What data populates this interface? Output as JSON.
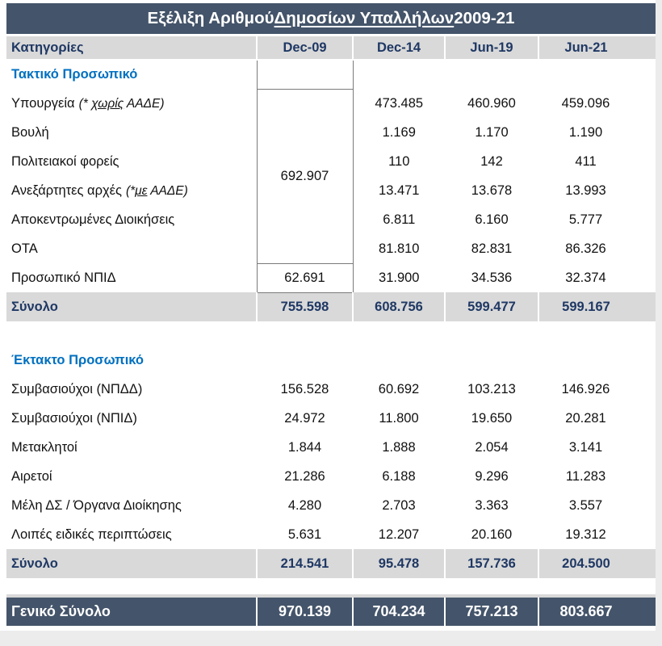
{
  "title": {
    "prefix": "Εξέλιξη Αριθμού ",
    "underlined": "Δημοσίων Υπαλλήλων",
    "suffix": " 2009-21"
  },
  "header": {
    "columns": [
      "Κατηγορίες",
      "Dec-09",
      "Dec-14",
      "Jun-19",
      "Jun-21"
    ]
  },
  "colors": {
    "title_bg": "#44546A",
    "title_text": "#FFFFFF",
    "header_bg": "#D9D9D9",
    "header_text": "#1F3864",
    "section_text": "#0070C0",
    "subtotal_bg": "#D9D9D9",
    "subtotal_text": "#1F3864",
    "grand_bg": "#44546A",
    "grand_text": "#FFFFFF",
    "box_border": "#7A7A7A"
  },
  "table": {
    "merge": {
      "value": "692.907",
      "span": 6,
      "column": "Dec-09"
    },
    "rows": [
      {
        "type": "section",
        "label": "Τακτικό Προσωπικό",
        "box_empty": true
      },
      {
        "type": "data",
        "label": "Υπουργεία",
        "note": {
          "pre": "(* ",
          "u": "χωρίς",
          "post": " ΑΑΔΕ)"
        },
        "merge_start": true,
        "values": [
          null,
          "473.485",
          "460.960",
          "459.096"
        ]
      },
      {
        "type": "data",
        "label": "Βουλή",
        "in_merge": true,
        "values": [
          null,
          "1.169",
          "1.170",
          "1.190"
        ]
      },
      {
        "type": "data",
        "label": "Πολιτειακοί φορείς",
        "in_merge": true,
        "values": [
          null,
          "110",
          "142",
          "411"
        ]
      },
      {
        "type": "data",
        "label": "Ανεξάρτητες αρχές",
        "note": {
          "pre": "(*",
          "u": "με",
          "post": " ΑΑΔΕ)"
        },
        "in_merge": true,
        "values": [
          null,
          "13.471",
          "13.678",
          "13.993"
        ]
      },
      {
        "type": "data",
        "label": "Αποκεντρωμένες Διοικήσεις",
        "in_merge": true,
        "values": [
          null,
          "6.811",
          "6.160",
          "5.777"
        ]
      },
      {
        "type": "data",
        "label": "ΟΤΑ",
        "in_merge": true,
        "values": [
          null,
          "81.810",
          "82.831",
          "86.326"
        ]
      },
      {
        "type": "data",
        "label": "Προσωπικό ΝΠΙΔ",
        "dec09_box": true,
        "values": [
          "62.691",
          "31.900",
          "34.536",
          "32.374"
        ]
      },
      {
        "type": "subtotal",
        "label": "Σύνολο",
        "values": [
          "755.598",
          "608.756",
          "599.477",
          "599.167"
        ]
      },
      {
        "type": "spacer",
        "height": 30
      },
      {
        "type": "section",
        "label": "Έκτακτο Προσωπικό"
      },
      {
        "type": "data",
        "label": "Συμβασιούχοι (ΝΠΔΔ)",
        "values": [
          "156.528",
          "60.692",
          "103.213",
          "146.926"
        ]
      },
      {
        "type": "data",
        "label": "Συμβασιούχοι (ΝΠΙΔ)",
        "values": [
          "24.972",
          "11.800",
          "19.650",
          "20.281"
        ]
      },
      {
        "type": "data",
        "label": "Μετακλητοί",
        "values": [
          "1.844",
          "1.888",
          "2.054",
          "3.141"
        ]
      },
      {
        "type": "data",
        "label": "Αιρετοί",
        "values": [
          "21.286",
          "6.188",
          "9.296",
          "11.283"
        ]
      },
      {
        "type": "data",
        "label": "Μέλη ΔΣ / Όργανα Διοίκησης",
        "values": [
          "4.280",
          "2.703",
          "3.363",
          "3.557"
        ]
      },
      {
        "type": "data",
        "label": "Λοιπές ειδικές περιπτώσεις",
        "values": [
          "5.631",
          "12.207",
          "20.160",
          "19.312"
        ]
      },
      {
        "type": "subtotal",
        "label": "Σύνολο",
        "values": [
          "214.541",
          "95.478",
          "157.736",
          "204.500"
        ]
      },
      {
        "type": "spacer",
        "height": 20
      },
      {
        "type": "rule"
      },
      {
        "type": "grand",
        "label": "Γενικό Σύνολο",
        "values": [
          "970.139",
          "704.234",
          "757.213",
          "803.667"
        ]
      }
    ]
  }
}
